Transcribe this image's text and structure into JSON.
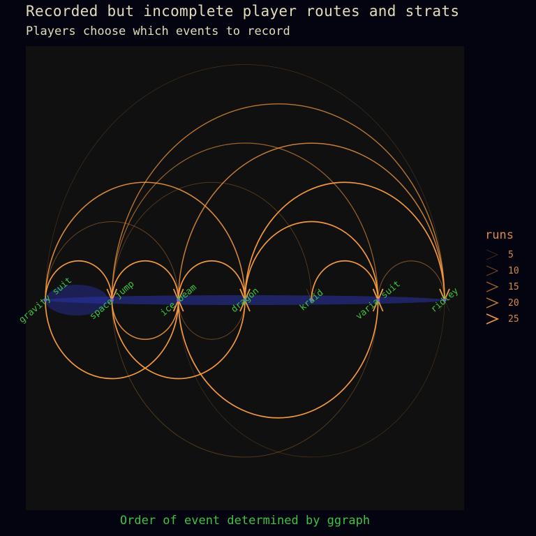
{
  "title": "Recorded but incomplete player routes and strats",
  "subtitle": "Players choose which events to record",
  "caption": "Order of event determined by ggraph",
  "chart_data": {
    "type": "arc-diagram",
    "nodes": [
      "gravity suit",
      "space jump",
      "ice beam",
      "dragon",
      "kraid",
      "varia suit",
      "ridley"
    ],
    "edges": [
      {
        "from": "gravity suit",
        "to": "space jump",
        "runs": 25,
        "side": "top"
      },
      {
        "from": "gravity suit",
        "to": "dragon",
        "runs": 22,
        "side": "top"
      },
      {
        "from": "gravity suit",
        "to": "ice beam",
        "runs": 8,
        "side": "top"
      },
      {
        "from": "gravity suit",
        "to": "ridley",
        "runs": 3,
        "side": "top"
      },
      {
        "from": "space jump",
        "to": "ice beam",
        "runs": 25,
        "side": "top"
      },
      {
        "from": "space jump",
        "to": "ridley",
        "runs": 18,
        "side": "top"
      },
      {
        "from": "space jump",
        "to": "varia suit",
        "runs": 14,
        "side": "top"
      },
      {
        "from": "space jump",
        "to": "kraid",
        "runs": 6,
        "side": "top"
      },
      {
        "from": "ice beam",
        "to": "dragon",
        "runs": 25,
        "side": "top"
      },
      {
        "from": "ice beam",
        "to": "ridley",
        "runs": 20,
        "side": "top"
      },
      {
        "from": "dragon",
        "to": "varia suit",
        "runs": 25,
        "side": "top"
      },
      {
        "from": "dragon",
        "to": "ridley",
        "runs": 25,
        "side": "top"
      },
      {
        "from": "kraid",
        "to": "varia suit",
        "runs": 25,
        "side": "top"
      },
      {
        "from": "varia suit",
        "to": "ridley",
        "runs": 10,
        "side": "top"
      },
      {
        "from": "gravity suit",
        "to": "ice beam",
        "runs": 25,
        "side": "bottom"
      },
      {
        "from": "space jump",
        "to": "ice beam",
        "runs": 22,
        "side": "bottom"
      },
      {
        "from": "ice beam",
        "to": "dragon",
        "runs": 8,
        "side": "bottom"
      },
      {
        "from": "space jump",
        "to": "dragon",
        "runs": 25,
        "side": "bottom"
      },
      {
        "from": "ice beam",
        "to": "varia suit",
        "runs": 25,
        "side": "bottom"
      },
      {
        "from": "space jump",
        "to": "varia suit",
        "runs": 6,
        "side": "bottom"
      },
      {
        "from": "ice beam",
        "to": "ridley",
        "runs": 3,
        "side": "bottom"
      }
    ],
    "legend": {
      "title": "runs",
      "entries": [
        5,
        10,
        15,
        20,
        25
      ],
      "placement": "right"
    },
    "colors": {
      "background": "#03040f",
      "panel": "#101010",
      "edge": "#f2983e",
      "node_band": "#2a34a8",
      "node_label": "#3ec43e",
      "title": "#e2ddb8",
      "legend": "#d9894a"
    }
  }
}
